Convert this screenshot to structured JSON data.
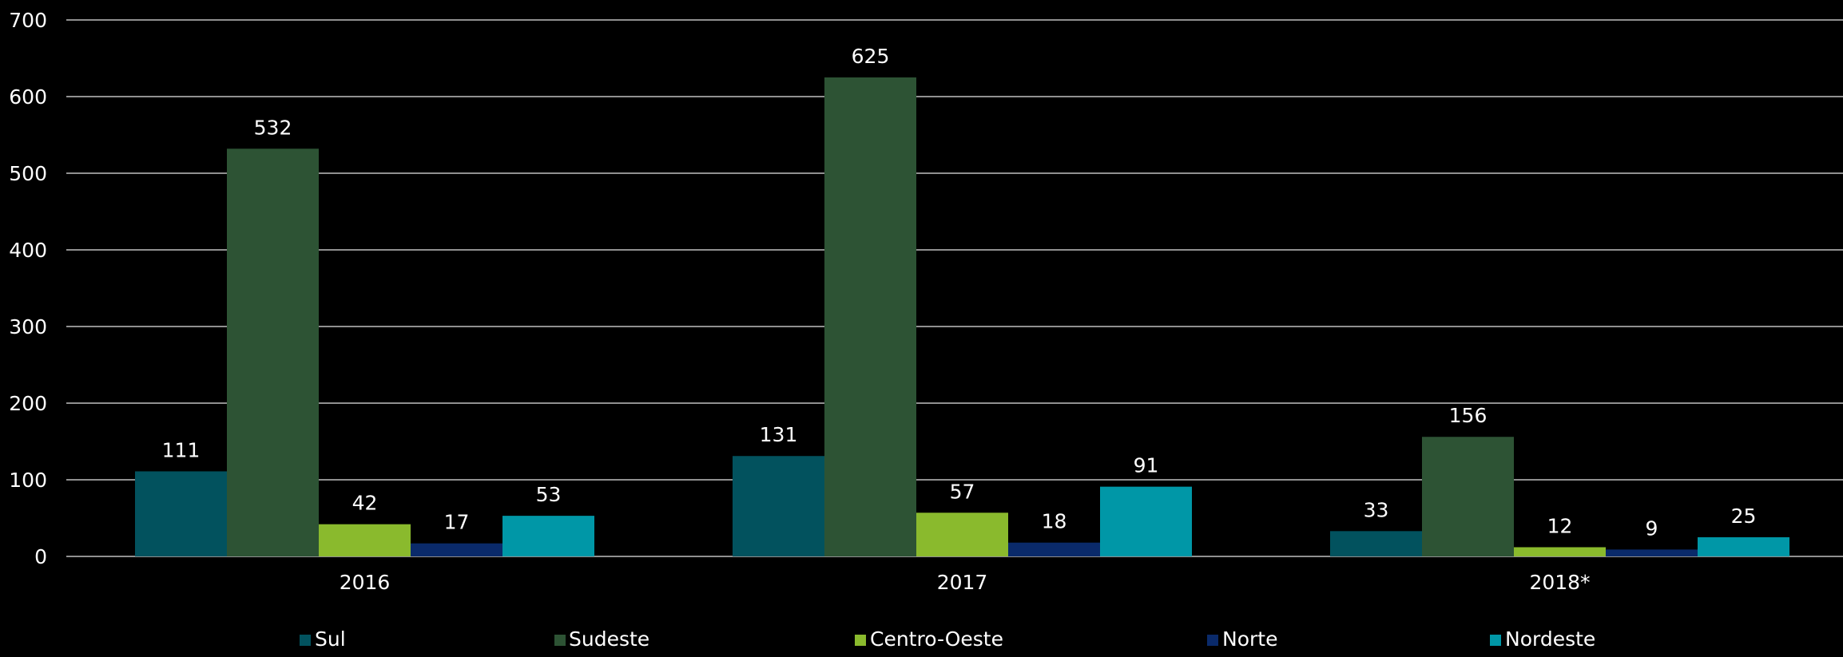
{
  "chart_data": {
    "type": "bar",
    "title": "",
    "xlabel": "",
    "ylabel": "",
    "ylim": [
      0,
      700
    ],
    "yticks": [
      0,
      100,
      200,
      300,
      400,
      500,
      600,
      700
    ],
    "grid": true,
    "legend_position": "bottom",
    "categories": [
      "2016",
      "2017",
      "2018*"
    ],
    "series": [
      {
        "name": "Sul",
        "color": "#02525e",
        "values": [
          111,
          131,
          33
        ]
      },
      {
        "name": "Sudeste",
        "color": "#2d5334",
        "values": [
          532,
          625,
          156
        ]
      },
      {
        "name": "Centro-Oeste",
        "color": "#8aba2d",
        "values": [
          42,
          57,
          12
        ]
      },
      {
        "name": "Norte",
        "color": "#0a2a6a",
        "values": [
          17,
          18,
          9
        ]
      },
      {
        "name": "Nordeste",
        "color": "#0097a7",
        "values": [
          53,
          91,
          25
        ]
      }
    ],
    "colors": {
      "background": "#000000",
      "gridline": "#bfbfbf",
      "text": "#ffffff"
    }
  }
}
